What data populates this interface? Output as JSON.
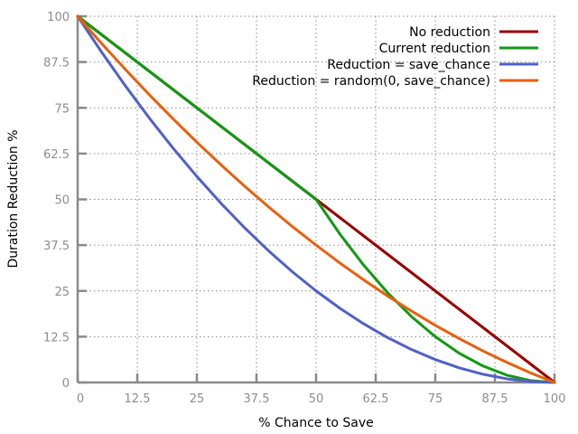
{
  "chart_data": {
    "type": "line",
    "title": "",
    "xlabel": "% Chance to Save",
    "ylabel": "Duration Reduction %",
    "xlim": [
      0,
      100
    ],
    "ylim": [
      0,
      100
    ],
    "x_ticks": [
      0,
      12.5,
      25,
      37.5,
      50,
      62.5,
      75,
      87.5,
      100
    ],
    "y_ticks": [
      0,
      12.5,
      25,
      37.5,
      50,
      62.5,
      75,
      87.5,
      100
    ],
    "x_tick_labels": [
      "0",
      "12.5",
      "25",
      "37.5",
      "50",
      "62.5",
      "75",
      "87.5",
      "100"
    ],
    "y_tick_labels": [
      "0",
      "12.5",
      "25",
      "37.5",
      "50",
      "62.5",
      "75",
      "87.5",
      "100"
    ],
    "grid": true,
    "legend_position": "top-right",
    "x": [
      0,
      5,
      10,
      15,
      20,
      25,
      30,
      35,
      40,
      45,
      50,
      55,
      60,
      65,
      70,
      75,
      80,
      85,
      90,
      95,
      100
    ],
    "series": [
      {
        "name": "No reduction",
        "color": "#990000",
        "values": [
          100,
          95,
          90,
          85,
          80,
          75,
          70,
          65,
          60,
          55,
          50,
          45,
          40,
          35,
          30,
          25,
          20,
          15,
          10,
          5,
          0
        ]
      },
      {
        "name": "Current reduction",
        "color": "#119911",
        "values": [
          100,
          95,
          90,
          85,
          80,
          75,
          70,
          65,
          60,
          55,
          50,
          40.5,
          32,
          24.5,
          18,
          12.5,
          8,
          4.5,
          2,
          0.5,
          0
        ]
      },
      {
        "name": "Reduction = save_chance",
        "color": "#5060c8",
        "values": [
          100,
          90.25,
          81,
          72.25,
          64,
          56.25,
          49,
          42.25,
          36,
          30.25,
          25,
          20.25,
          16,
          12.25,
          9,
          6.25,
          4,
          2.25,
          1,
          0.25,
          0
        ]
      },
      {
        "name": "Reduction = random(0, save_chance)",
        "color": "#e8600c",
        "values": [
          100,
          92.6,
          85.5,
          78.6,
          72,
          65.6,
          59.5,
          53.6,
          48,
          42.6,
          37.5,
          32.6,
          28,
          23.6,
          19.5,
          15.6,
          12,
          8.6,
          5.5,
          2.6,
          0
        ]
      }
    ]
  }
}
